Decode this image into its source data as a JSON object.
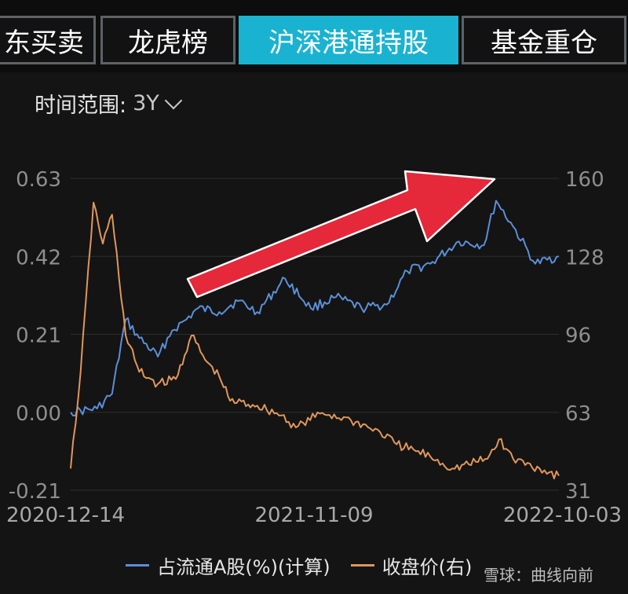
{
  "tabs": [
    {
      "label": "东买卖",
      "active": false
    },
    {
      "label": "龙虎榜",
      "active": false
    },
    {
      "label": "沪深港通持股",
      "active": true
    },
    {
      "label": "基金重仓",
      "active": false
    }
  ],
  "range": {
    "label": "时间范围:",
    "value": "3Y"
  },
  "watermark": "雪球：曲线向前",
  "colors": {
    "blue": "#5b8fd8",
    "orange": "#e0975a",
    "arrow": "#e5283a",
    "active_tab": "#19b3d1"
  },
  "chart_data": {
    "type": "line",
    "title": "",
    "x_ticks": [
      "2020-12-14",
      "2021-11-09",
      "2022-10-03"
    ],
    "x_range": [
      "2020-12-14",
      "2022-10-28"
    ],
    "y_left": {
      "ticks": [
        "0.63",
        "0.42",
        "0.21",
        "0.00",
        "-0.21"
      ],
      "range": [
        -0.21,
        0.63
      ]
    },
    "y_right": {
      "ticks": [
        "160",
        "128",
        "96",
        "63",
        "31"
      ],
      "range": [
        31,
        160
      ]
    },
    "grid": true,
    "legend_position": "bottom",
    "series": [
      {
        "name": "占流通A股(%)(计算)",
        "axis": "left",
        "points": [
          [
            "2020-12-14",
            0.0
          ],
          [
            "2021-01-20",
            0.01
          ],
          [
            "2021-02-10",
            0.05
          ],
          [
            "2021-03-01",
            0.25
          ],
          [
            "2021-03-20",
            0.2
          ],
          [
            "2021-04-15",
            0.15
          ],
          [
            "2021-05-05",
            0.22
          ],
          [
            "2021-05-25",
            0.25
          ],
          [
            "2021-06-10",
            0.28
          ],
          [
            "2021-07-10",
            0.27
          ],
          [
            "2021-08-05",
            0.3
          ],
          [
            "2021-09-01",
            0.27
          ],
          [
            "2021-10-10",
            0.36
          ],
          [
            "2021-11-15",
            0.28
          ],
          [
            "2021-12-20",
            0.31
          ],
          [
            "2022-01-25",
            0.28
          ],
          [
            "2022-03-01",
            0.29
          ],
          [
            "2022-03-30",
            0.38
          ],
          [
            "2022-05-01",
            0.4
          ],
          [
            "2022-06-10",
            0.46
          ],
          [
            "2022-07-15",
            0.45
          ],
          [
            "2022-08-01",
            0.57
          ],
          [
            "2022-08-25",
            0.5
          ],
          [
            "2022-09-25",
            0.4
          ],
          [
            "2022-10-28",
            0.42
          ]
        ]
      },
      {
        "name": "收盘价(右)",
        "axis": "right",
        "points": [
          [
            "2020-12-14",
            40
          ],
          [
            "2020-12-28",
            80
          ],
          [
            "2021-01-15",
            150
          ],
          [
            "2021-01-28",
            133
          ],
          [
            "2021-02-10",
            145
          ],
          [
            "2021-03-01",
            95
          ],
          [
            "2021-03-20",
            80
          ],
          [
            "2021-04-15",
            75
          ],
          [
            "2021-05-10",
            77
          ],
          [
            "2021-06-01",
            95
          ],
          [
            "2021-06-20",
            85
          ],
          [
            "2021-07-10",
            78
          ],
          [
            "2021-07-25",
            68
          ],
          [
            "2021-09-01",
            66
          ],
          [
            "2021-10-05",
            62
          ],
          [
            "2021-10-25",
            57
          ],
          [
            "2021-12-01",
            63
          ],
          [
            "2022-01-10",
            60
          ],
          [
            "2022-02-20",
            55
          ],
          [
            "2022-03-15",
            50
          ],
          [
            "2022-05-01",
            45
          ],
          [
            "2022-06-01",
            40
          ],
          [
            "2022-07-20",
            44
          ],
          [
            "2022-08-05",
            52
          ],
          [
            "2022-08-25",
            44
          ],
          [
            "2022-10-01",
            40
          ],
          [
            "2022-10-28",
            37
          ]
        ]
      }
    ]
  }
}
